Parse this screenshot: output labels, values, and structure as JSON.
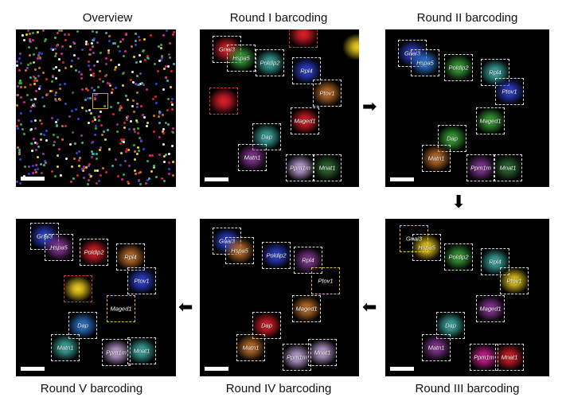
{
  "titles": {
    "overview": "Overview",
    "round1": "Round I barcoding",
    "round2": "Round II barcoding",
    "round3": "Round III barcoding",
    "round4": "Round IV barcoding",
    "round5": "Round V barcoding"
  },
  "genes": {
    "gnai3": "Gnai3",
    "hspa5": "Hspa5",
    "poldip2": "Poldip2",
    "rpl4": "Rpl4",
    "ptov1": "Ptov1",
    "maged1": "Maged1",
    "dap": "Dap",
    "matn1": "Matn1",
    "ppm1m": "Ppm1m",
    "mnat1": "Mnat1"
  },
  "colors": {
    "red": "#e0202a",
    "green": "#3aa83a",
    "blue": "#2f44d8",
    "teal": "#3fb2a8",
    "orange": "#c8742c",
    "purple": "#8a3a9a",
    "lavender": "#c8a8e0",
    "yellow": "#f2d020",
    "magenta": "#d8209a",
    "lightgreen": "#7ac85a",
    "skyblue": "#2f7ad8",
    "darkgreen": "#2e6e34"
  },
  "arrows": {
    "right": "➡",
    "down": "⬇",
    "left": "⬅"
  }
}
